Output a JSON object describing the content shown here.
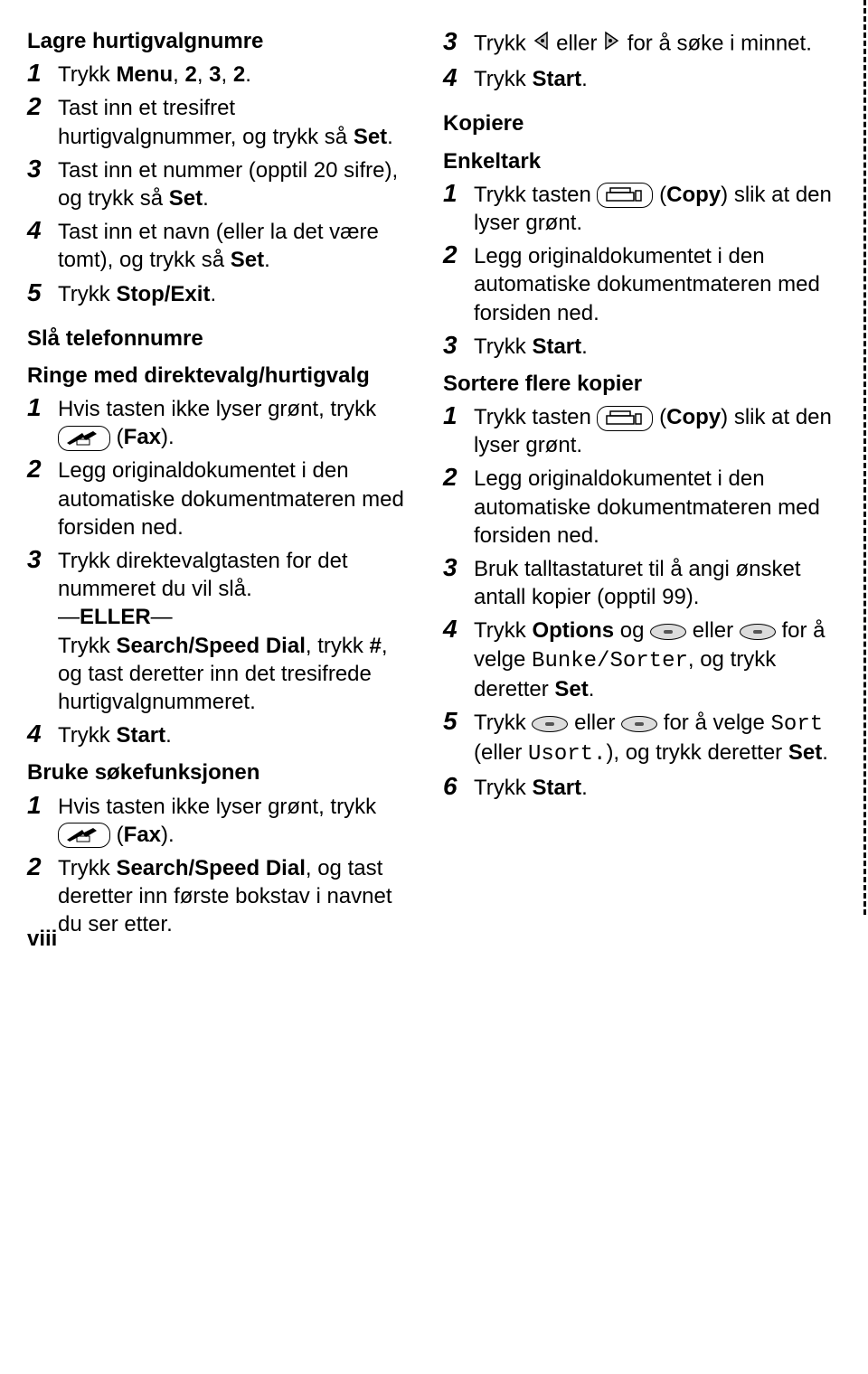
{
  "page_number": "viii",
  "left": {
    "section1": {
      "heading": "Lagre hurtigvalgnumre",
      "steps": [
        {
          "num": "1",
          "parts": [
            {
              "t": "Trykk "
            },
            {
              "t": "Menu",
              "b": true
            },
            {
              "t": ", "
            },
            {
              "t": "2",
              "b": true
            },
            {
              "t": ", "
            },
            {
              "t": "3",
              "b": true
            },
            {
              "t": ", "
            },
            {
              "t": "2",
              "b": true
            },
            {
              "t": "."
            }
          ]
        },
        {
          "num": "2",
          "parts": [
            {
              "t": "Tast inn et tresifret hurtigvalgnummer, og trykk så "
            },
            {
              "t": "Set",
              "b": true
            },
            {
              "t": "."
            }
          ]
        },
        {
          "num": "3",
          "parts": [
            {
              "t": "Tast inn et nummer (opptil 20 sifre), og trykk så "
            },
            {
              "t": "Set",
              "b": true
            },
            {
              "t": "."
            }
          ]
        },
        {
          "num": "4",
          "parts": [
            {
              "t": "Tast inn et navn (eller la det være tomt), og trykk så "
            },
            {
              "t": "Set",
              "b": true
            },
            {
              "t": "."
            }
          ]
        },
        {
          "num": "5",
          "parts": [
            {
              "t": "Trykk "
            },
            {
              "t": "Stop/Exit",
              "b": true
            },
            {
              "t": "."
            }
          ]
        }
      ]
    },
    "section2": {
      "heading": "Slå telefonnumre",
      "subheading": "Ringe med direktevalg/hurtigvalg",
      "steps": [
        {
          "num": "1",
          "parts": [
            {
              "t": "Hvis tasten ikke lyser grønt, trykk "
            },
            {
              "icon": "fax"
            },
            {
              "t": " ("
            },
            {
              "t": "Fax",
              "b": true
            },
            {
              "t": ")."
            }
          ]
        },
        {
          "num": "2",
          "parts": [
            {
              "t": "Legg originaldokumentet i den automatiske dokumentmateren med forsiden ned."
            }
          ]
        },
        {
          "num": "3",
          "parts": [
            {
              "t": "Trykk direktevalgtasten for det nummeret du vil slå."
            },
            {
              "br": true
            },
            {
              "t": "—",
              "cls": "eller"
            },
            {
              "t": "ELLER",
              "b": true
            },
            {
              "t": "—"
            },
            {
              "br": true
            },
            {
              "t": "Trykk "
            },
            {
              "t": "Search/Speed Dial",
              "b": true
            },
            {
              "t": ", trykk "
            },
            {
              "t": "#",
              "b": true
            },
            {
              "t": ", og tast deretter inn det tresifrede hurtigvalgnummeret."
            }
          ]
        },
        {
          "num": "4",
          "parts": [
            {
              "t": "Trykk "
            },
            {
              "t": "Start",
              "b": true
            },
            {
              "t": "."
            }
          ]
        }
      ]
    },
    "section3": {
      "subheading": "Bruke søkefunksjonen",
      "steps": [
        {
          "num": "1",
          "parts": [
            {
              "t": "Hvis tasten ikke lyser grønt, trykk "
            },
            {
              "icon": "fax"
            },
            {
              "t": " ("
            },
            {
              "t": "Fax",
              "b": true
            },
            {
              "t": ")."
            }
          ]
        },
        {
          "num": "2",
          "parts": [
            {
              "t": "Trykk "
            },
            {
              "t": "Search/Speed Dial",
              "b": true
            },
            {
              "t": ", og tast deretter inn første bokstav i navnet du ser etter."
            }
          ]
        }
      ]
    }
  },
  "right": {
    "section1": {
      "steps": [
        {
          "num": "3",
          "parts": [
            {
              "t": "Trykk "
            },
            {
              "icon": "arrow-left"
            },
            {
              "t": " eller "
            },
            {
              "icon": "arrow-right"
            },
            {
              "t": " for å søke i minnet."
            }
          ]
        },
        {
          "num": "4",
          "parts": [
            {
              "t": "Trykk "
            },
            {
              "t": "Start",
              "b": true
            },
            {
              "t": "."
            }
          ]
        }
      ]
    },
    "section2": {
      "heading": "Kopiere",
      "subheading": "Enkeltark",
      "steps": [
        {
          "num": "1",
          "parts": [
            {
              "t": "Trykk tasten "
            },
            {
              "icon": "copy"
            },
            {
              "t": " ("
            },
            {
              "t": "Copy",
              "b": true
            },
            {
              "t": ") slik at den lyser grønt."
            }
          ]
        },
        {
          "num": "2",
          "parts": [
            {
              "t": "Legg originaldokumentet i den automatiske dokumentmateren med forsiden ned."
            }
          ]
        },
        {
          "num": "3",
          "parts": [
            {
              "t": "Trykk "
            },
            {
              "t": "Start",
              "b": true
            },
            {
              "t": "."
            }
          ]
        }
      ]
    },
    "section3": {
      "subheading": "Sortere flere kopier",
      "steps": [
        {
          "num": "1",
          "parts": [
            {
              "t": "Trykk tasten "
            },
            {
              "icon": "copy"
            },
            {
              "t": " ("
            },
            {
              "t": "Copy",
              "b": true
            },
            {
              "t": ") slik at den lyser grønt."
            }
          ]
        },
        {
          "num": "2",
          "parts": [
            {
              "t": "Legg originaldokumentet i den automatiske dokumentmateren med forsiden ned."
            }
          ]
        },
        {
          "num": "3",
          "parts": [
            {
              "t": "Bruk talltastaturet til å angi ønsket antall kopier (opptil 99)."
            }
          ]
        },
        {
          "num": "4",
          "parts": [
            {
              "t": "Trykk "
            },
            {
              "t": "Options",
              "b": true
            },
            {
              "t": " og "
            },
            {
              "icon": "oval"
            },
            {
              "t": " eller "
            },
            {
              "icon": "oval"
            },
            {
              "t": " for å velge "
            },
            {
              "t": "Bunke/Sorter",
              "mono": true
            },
            {
              "t": ", og trykk deretter "
            },
            {
              "t": "Set",
              "b": true
            },
            {
              "t": "."
            }
          ]
        },
        {
          "num": "5",
          "parts": [
            {
              "t": "Trykk "
            },
            {
              "icon": "oval"
            },
            {
              "t": " eller "
            },
            {
              "icon": "oval"
            },
            {
              "t": " for å velge "
            },
            {
              "t": "Sort",
              "mono": true
            },
            {
              "t": " (eller "
            },
            {
              "t": "Usort.",
              "mono": true
            },
            {
              "t": "), og trykk deretter "
            },
            {
              "t": "Set",
              "b": true
            },
            {
              "t": "."
            }
          ]
        },
        {
          "num": "6",
          "parts": [
            {
              "t": "Trykk "
            },
            {
              "t": "Start",
              "b": true
            },
            {
              "t": "."
            }
          ]
        }
      ]
    }
  }
}
